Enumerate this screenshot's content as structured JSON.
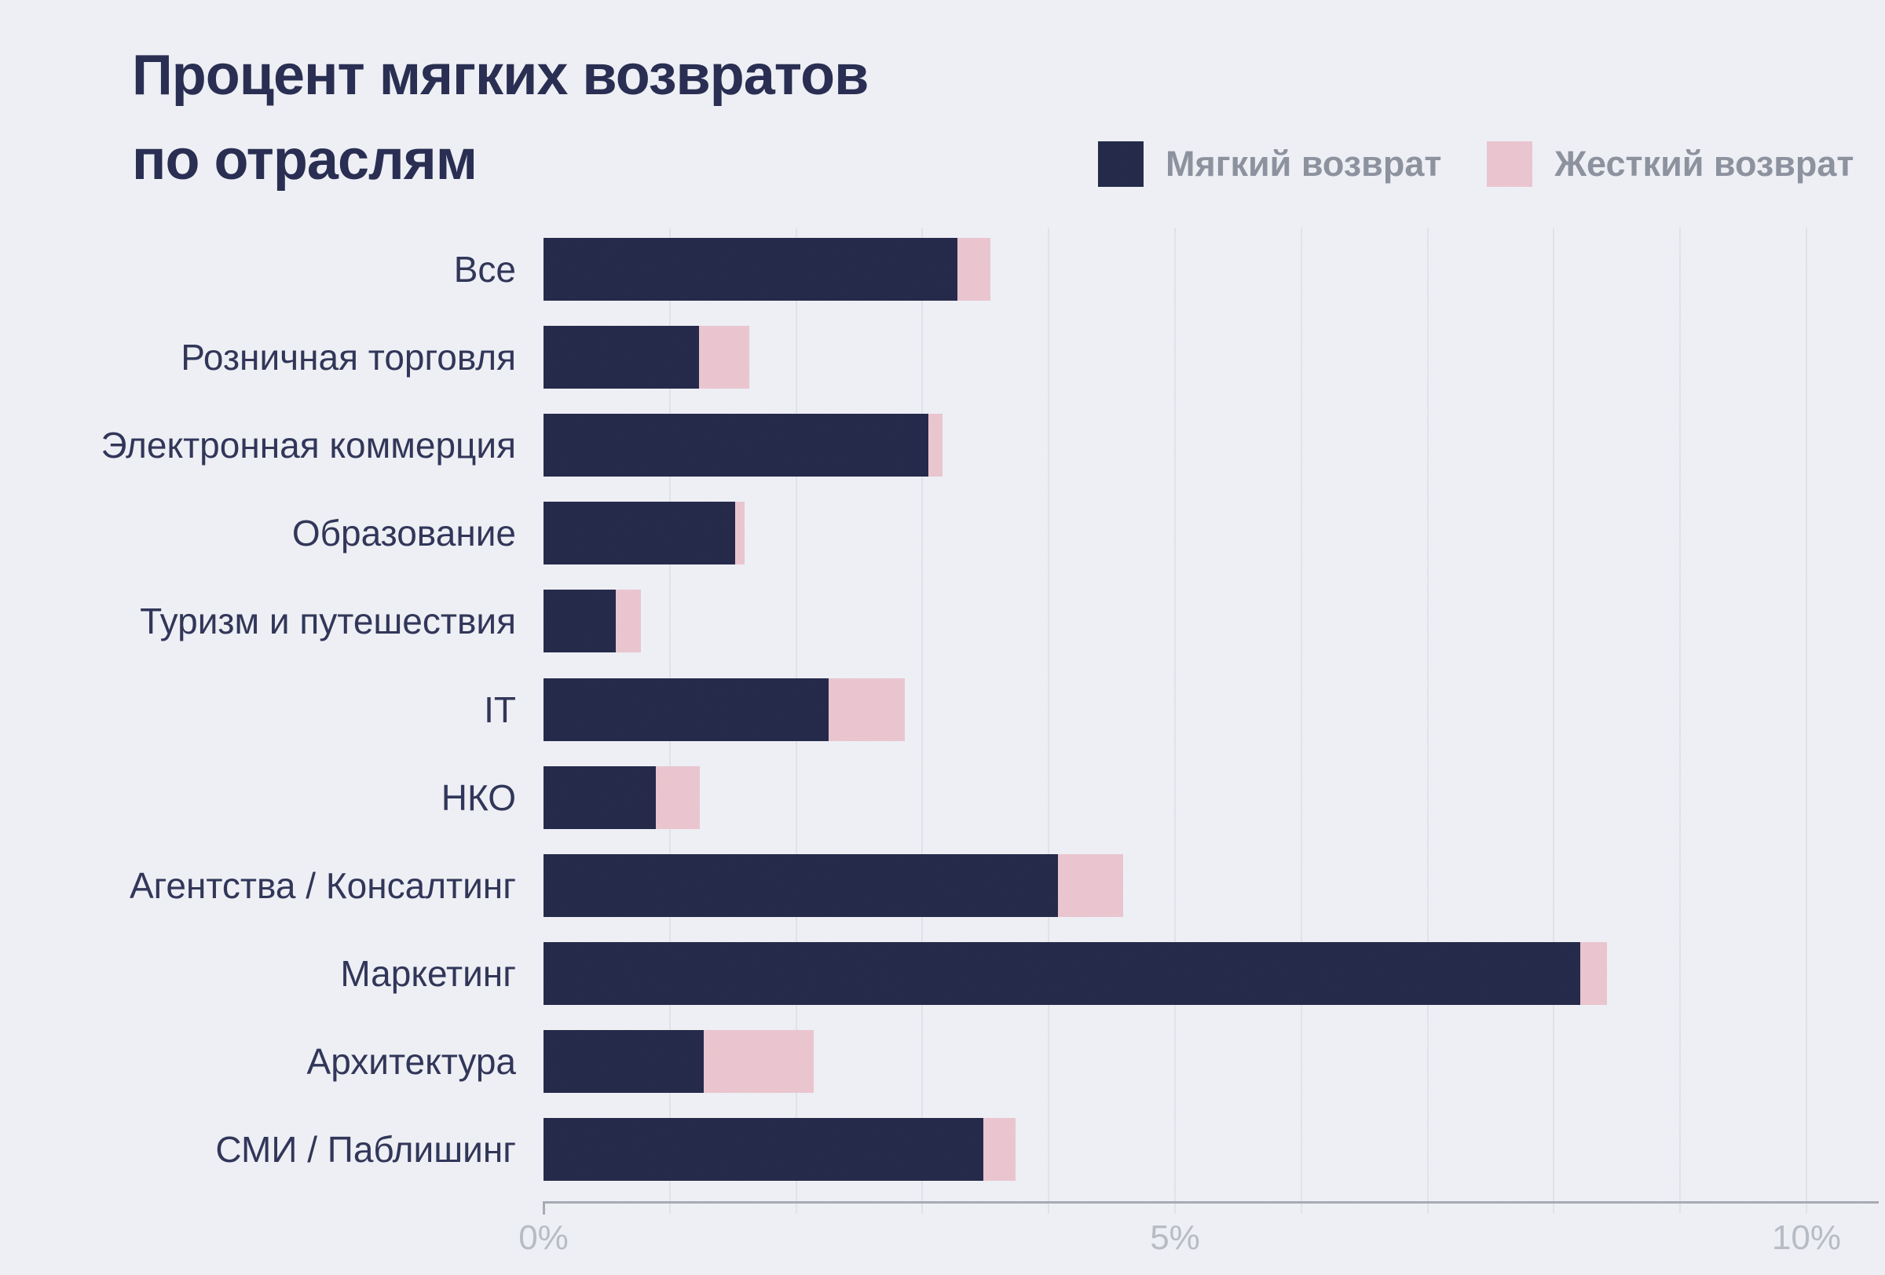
{
  "title": {
    "line1": "Процент мягких возвратов",
    "line2": "по отраслям"
  },
  "legend": [
    {
      "label": "Мягкий возврат",
      "color": "#242848"
    },
    {
      "label": "Жесткий возврат",
      "color": "#e9c4ce"
    }
  ],
  "chart_data": {
    "type": "bar",
    "orientation": "horizontal",
    "stacked": true,
    "title": "Процент мягких возвратов по отраслям",
    "categories": [
      "Все",
      "Розничная торговля",
      "Электронная коммерция",
      "Образование",
      "Туризм и путешествия",
      "IT",
      "НКО",
      "Агентства / Консалтинг",
      "Маркетинг",
      "Архитектура",
      "СМИ / Паблишинг"
    ],
    "series": [
      {
        "name": "Мягкий возврат",
        "color": "#242848",
        "values": [
          3.28,
          1.23,
          3.05,
          1.52,
          0.57,
          2.26,
          0.89,
          4.07,
          8.21,
          1.27,
          3.48
        ]
      },
      {
        "name": "Жесткий возврат",
        "color": "#e9c4ce",
        "values": [
          0.26,
          0.4,
          0.11,
          0.07,
          0.2,
          0.6,
          0.35,
          0.52,
          0.21,
          0.87,
          0.26
        ]
      }
    ],
    "xlabel": "",
    "ylabel": "",
    "xlim": [
      0,
      10
    ],
    "x_ticks": [
      {
        "value": 0,
        "label": "0%"
      },
      {
        "value": 5,
        "label": "5%"
      },
      {
        "value": 10,
        "label": "10%"
      }
    ],
    "grid": "vertical gridlines every 1%",
    "legend_position": "top-right"
  },
  "colors": {
    "background": "#edeff4",
    "soft": "#242848",
    "hard": "#e9c4ce",
    "title": "#272c50",
    "category_label": "#2f3457",
    "legend_label": "#8b909d",
    "axis_label": "#b6bac4",
    "gridline": "#e0e2e9",
    "axis_line": "#a6a9b3"
  }
}
